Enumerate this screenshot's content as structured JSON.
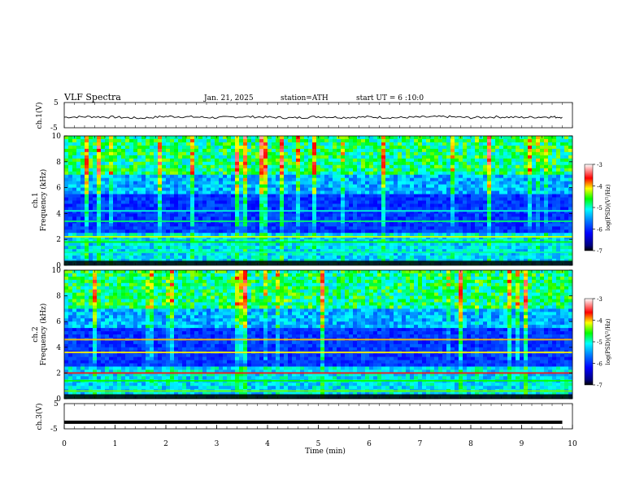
{
  "header": {
    "title": "VLF Spectra",
    "date": "Jan. 21, 2025",
    "station": "station=ATH",
    "start_ut": "start UT =  6 :10:0"
  },
  "chart_data": [
    {
      "type": "line",
      "id": "ch1_voltage",
      "ylabel": "ch.1(V)",
      "ylim": [
        -5,
        5
      ],
      "y_ticks": [
        "5",
        "-5"
      ],
      "xlim": [
        0,
        10
      ],
      "x_unit": "min",
      "x": [
        0,
        0.5,
        1,
        1.5,
        2,
        2.5,
        3,
        3.5,
        4,
        4.5,
        5,
        5.5,
        6,
        6.5,
        7,
        7.5,
        8,
        8.5,
        9,
        9.5,
        9.8
      ],
      "y": [
        -0.8,
        -0.6,
        -0.8,
        -1.2,
        -0.5,
        -0.7,
        -1.0,
        -0.6,
        -0.8,
        -1.1,
        -0.6,
        -0.9,
        -0.7,
        -1.0,
        -0.8,
        -0.6,
        -1.0,
        -0.7,
        -0.9,
        -0.7,
        -0.8
      ],
      "color": "#000000"
    },
    {
      "type": "heatmap",
      "id": "ch1_spectrogram",
      "ylabel_line1": "ch.1",
      "ylabel_line2": "Frequency  (kHz)",
      "y_ticks": [
        "0",
        "2",
        "4",
        "6",
        "8",
        "10"
      ],
      "ylim": [
        0,
        10
      ],
      "xlim": [
        0,
        10
      ],
      "colorbar": {
        "label": "log(PSD)(V²/Hz)",
        "ticks": [
          "-3",
          "-4",
          "-5",
          "-6",
          "-7"
        ],
        "range": [
          -7,
          -3
        ]
      },
      "bands_khz": [
        {
          "f": 4.2,
          "level": -5.0
        },
        {
          "f": 3.4,
          "level": -4.8
        },
        {
          "f": 2.2,
          "level": -4.2
        },
        {
          "f": 1.8,
          "level": -4.6
        },
        {
          "f": 1.0,
          "level": -4.9
        }
      ]
    },
    {
      "type": "heatmap",
      "id": "ch2_spectrogram",
      "ylabel_line1": "ch.2",
      "ylabel_line2": "Frequency  (kHz)",
      "y_ticks": [
        "0",
        "2",
        "4",
        "6",
        "8",
        "10"
      ],
      "ylim": [
        0,
        10
      ],
      "xlim": [
        0,
        10
      ],
      "colorbar": {
        "label": "log(PSD)(V²/Hz)",
        "ticks": [
          "-3",
          "-4",
          "-5",
          "-6",
          "-7"
        ],
        "range": [
          -7,
          -3
        ]
      },
      "bands_khz": [
        {
          "f": 4.6,
          "level": -4.0
        },
        {
          "f": 3.6,
          "level": -4.1
        },
        {
          "f": 2.0,
          "level": -3.6
        },
        {
          "f": 1.4,
          "level": -4.6
        },
        {
          "f": 0.6,
          "level": -4.4
        }
      ]
    },
    {
      "type": "line",
      "id": "ch3_voltage",
      "ylabel": "ch.3(V)",
      "ylim": [
        -5,
        5
      ],
      "y_ticks": [
        "5",
        "-5"
      ],
      "xlim": [
        0,
        10
      ],
      "x": [
        0,
        9.8
      ],
      "y": [
        -2.4,
        -2.4
      ],
      "color": "#000000"
    }
  ],
  "x_axis": {
    "label": "Time  (min)",
    "ticks": [
      "0",
      "1",
      "2",
      "3",
      "4",
      "5",
      "6",
      "7",
      "8",
      "9",
      "10"
    ]
  }
}
